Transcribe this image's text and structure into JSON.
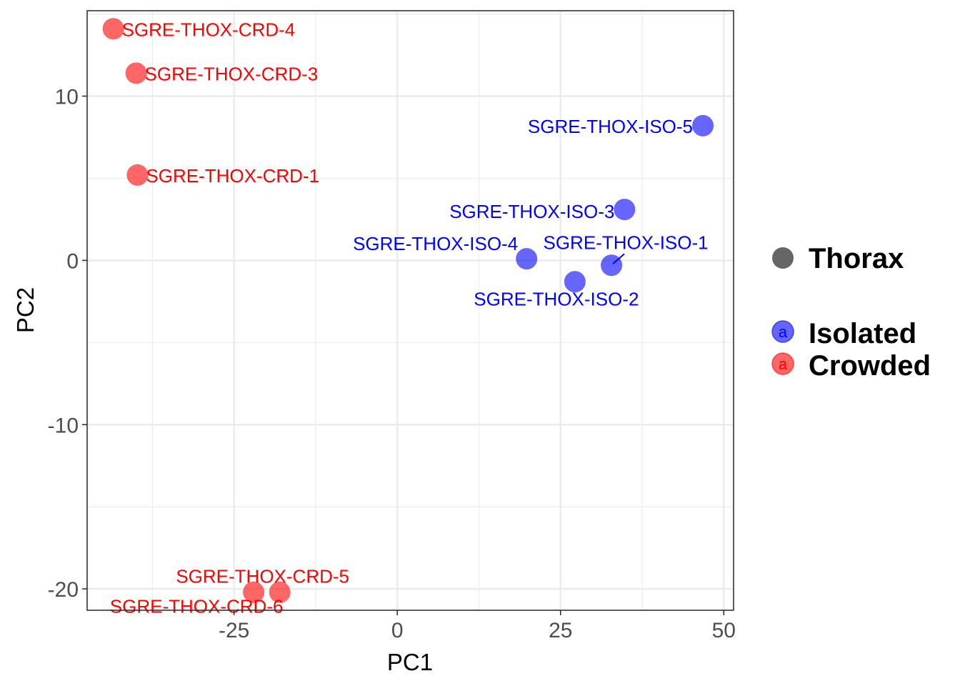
{
  "chart_data": {
    "type": "scatter",
    "xlabel": "PC1",
    "ylabel": "PC2",
    "xlim": [
      -47.5,
      51.5
    ],
    "ylim": [
      -21.3,
      15.2
    ],
    "x_ticks": [
      -25,
      0,
      25,
      50
    ],
    "x_tick_labels": [
      "-25",
      "0",
      "25",
      "50"
    ],
    "y_ticks": [
      -20,
      -10,
      0,
      10
    ],
    "y_tick_labels": [
      "-20",
      "-10",
      "0",
      "10"
    ],
    "grid": true,
    "legend_position": "right",
    "shape_legend": {
      "label": "Thorax"
    },
    "colors": {
      "Isolated": "#0000ff",
      "Crowded": "#ff0000"
    },
    "series": [
      {
        "name": "Isolated",
        "points": [
          {
            "x": 19.8,
            "y": 0.1,
            "label": "SGRE-THOX-ISO-4"
          },
          {
            "x": 32.8,
            "y": -0.3,
            "label": "SGRE-THOX-ISO-1"
          },
          {
            "x": 27.2,
            "y": -1.3,
            "label": "SGRE-THOX-ISO-2"
          },
          {
            "x": 34.8,
            "y": 3.1,
            "label": "SGRE-THOX-ISO-3"
          },
          {
            "x": 46.8,
            "y": 8.2,
            "label": "SGRE-THOX-ISO-5"
          }
        ]
      },
      {
        "name": "Crowded",
        "points": [
          {
            "x": -43.5,
            "y": 14.1,
            "label": "SGRE-THOX-CRD-4"
          },
          {
            "x": -40.0,
            "y": 11.4,
            "label": "SGRE-THOX-CRD-3"
          },
          {
            "x": -39.8,
            "y": 5.2,
            "label": "SGRE-THOX-CRD-1"
          },
          {
            "x": -22.0,
            "y": -20.2,
            "label": "SGRE-THOX-CRD-6"
          },
          {
            "x": -18.0,
            "y": -20.2,
            "label": "SGRE-THOX-CRD-5"
          }
        ]
      }
    ]
  }
}
